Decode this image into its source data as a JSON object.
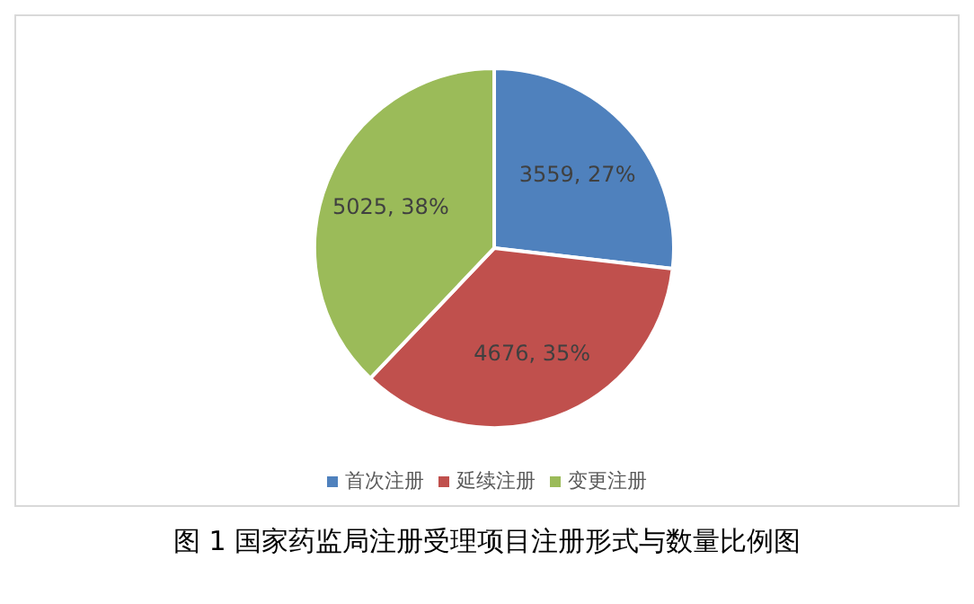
{
  "chart_data": {
    "type": "pie",
    "categories": [
      "首次注册",
      "延续注册",
      "变更注册"
    ],
    "values": [
      3559,
      4676,
      5025
    ],
    "colors": [
      "#4f81bd",
      "#c0504d",
      "#9bbb59"
    ],
    "value_labels": [
      "3559, 27%",
      "4676, 35%",
      "5025, 38%"
    ],
    "legend": "bottom",
    "annotations": [
      "图 1 国家药监局注册受理项目注册形式与数量比例图"
    ]
  }
}
